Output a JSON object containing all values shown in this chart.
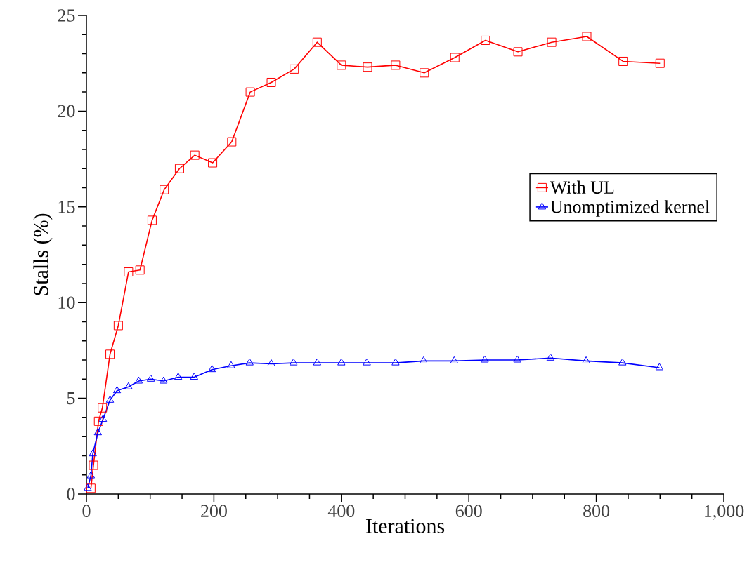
{
  "chart_data": {
    "type": "line",
    "xlabel": "Iterations",
    "ylabel": "Stalls (%)",
    "xlim": [
      0,
      1000
    ],
    "ylim": [
      0,
      25
    ],
    "xticks": [
      0,
      200,
      400,
      600,
      800,
      {
        "value": 1000,
        "label": "1,000"
      }
    ],
    "yticks": [
      0,
      5,
      10,
      15,
      20,
      25
    ],
    "legend": "right",
    "grid": false,
    "series": [
      {
        "name": "With UL",
        "color": "#ff0000",
        "marker": "square",
        "x": [
          7,
          11,
          19,
          25,
          37,
          50,
          66,
          84,
          103,
          122,
          146,
          170,
          198,
          228,
          257,
          290,
          326,
          362,
          400,
          441,
          485,
          530,
          578,
          626,
          677,
          730,
          785,
          842,
          900
        ],
        "values": [
          0.3,
          1.5,
          3.8,
          4.5,
          7.3,
          8.8,
          11.6,
          11.7,
          14.3,
          15.9,
          17.0,
          17.7,
          17.3,
          18.4,
          21.0,
          21.5,
          22.2,
          23.6,
          22.4,
          22.3,
          22.4,
          22.0,
          22.8,
          23.7,
          23.1,
          23.6,
          23.9,
          22.6,
          22.5
        ]
      },
      {
        "name": "Unomptimized kernel",
        "color": "#0000ff",
        "marker": "triangle",
        "x": [
          2,
          7,
          10,
          18,
          26,
          37,
          48,
          66,
          82,
          101,
          121,
          144,
          169,
          197,
          227,
          256,
          290,
          325,
          362,
          400,
          440,
          485,
          529,
          577,
          625,
          676,
          728,
          784,
          841,
          899
        ],
        "values": [
          0.3,
          0.95,
          2.1,
          3.2,
          3.9,
          4.9,
          5.4,
          5.6,
          5.9,
          6.0,
          5.9,
          6.1,
          6.1,
          6.5,
          6.7,
          6.85,
          6.8,
          6.85,
          6.85,
          6.85,
          6.85,
          6.85,
          6.95,
          6.95,
          7.0,
          7.0,
          7.1,
          6.95,
          6.85,
          6.6
        ]
      }
    ]
  }
}
